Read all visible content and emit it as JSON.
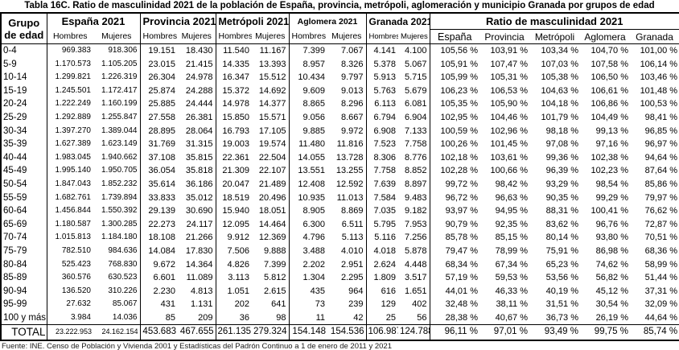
{
  "title": "Tabla 16C. Ratio de masculinidad 2021 de la población de España, provincia, metrópoli, aglomeración y municipio Granada por grupos de edad",
  "footer": "Fuente: INE. Censo de Población y Vivienda 2001 y Estadísticas del Padrón Continuo a 1 de enero de 2011 y 2021",
  "table": {
    "row_header": "Grupo de edad",
    "groups": [
      {
        "label": "España 2021",
        "sub": [
          "Hombres",
          "Mujeres"
        ]
      },
      {
        "label": "Provincia 2021",
        "sub": [
          "Hombres",
          "Mujeres"
        ]
      },
      {
        "label": "Metrópoli 2021",
        "sub": [
          "Hombres",
          "Mujeres"
        ]
      },
      {
        "label": "Aglomera 2021",
        "sub": [
          "Hombres",
          "Mujeres"
        ]
      },
      {
        "label": "Granada 2021",
        "sub": [
          "Hombres",
          "Mujeres"
        ]
      }
    ],
    "ratio_header": "Ratio de masculinidad 2021",
    "ratio_columns": [
      "España",
      "Provincia",
      "Metrópoli",
      "Aglomera",
      "Granada"
    ],
    "rows": [
      {
        "edad": "0-4",
        "values": [
          "969.383",
          "918.306",
          "19.151",
          "18.430",
          "11.540",
          "11.167",
          "7.399",
          "7.067",
          "4.141",
          "4.100"
        ],
        "ratios": [
          "105,56 %",
          "103,91 %",
          "103,34 %",
          "104,70 %",
          "101,00 %"
        ]
      },
      {
        "edad": "5-9",
        "values": [
          "1.170.573",
          "1.105.205",
          "23.015",
          "21.415",
          "14.335",
          "13.393",
          "8.957",
          "8.326",
          "5.378",
          "5.067"
        ],
        "ratios": [
          "105,91 %",
          "107,47 %",
          "107,03 %",
          "107,58 %",
          "106,14 %"
        ]
      },
      {
        "edad": "10-14",
        "values": [
          "1.299.821",
          "1.226.319",
          "26.304",
          "24.978",
          "16.347",
          "15.512",
          "10.434",
          "9.797",
          "5.913",
          "5.715"
        ],
        "ratios": [
          "105,99 %",
          "105,31 %",
          "105,38 %",
          "106,50 %",
          "103,46 %"
        ]
      },
      {
        "edad": "15-19",
        "values": [
          "1.245.501",
          "1.172.417",
          "25.874",
          "24.288",
          "15.372",
          "14.692",
          "9.609",
          "9.013",
          "5.763",
          "5.679"
        ],
        "ratios": [
          "106,23 %",
          "106,53 %",
          "104,63 %",
          "106,61 %",
          "101,48 %"
        ]
      },
      {
        "edad": "20-24",
        "values": [
          "1.222.249",
          "1.160.199",
          "25.885",
          "24.444",
          "14.978",
          "14.377",
          "8.865",
          "8.296",
          "6.113",
          "6.081"
        ],
        "ratios": [
          "105,35 %",
          "105,90 %",
          "104,18 %",
          "106,86 %",
          "100,53 %"
        ]
      },
      {
        "edad": "25-29",
        "values": [
          "1.292.889",
          "1.255.847",
          "27.558",
          "26.381",
          "15.850",
          "15.571",
          "9.056",
          "8.667",
          "6.794",
          "6.904"
        ],
        "ratios": [
          "102,95 %",
          "104,46 %",
          "101,79 %",
          "104,49 %",
          "98,41 %"
        ]
      },
      {
        "edad": "30-34",
        "values": [
          "1.397.270",
          "1.389.044",
          "28.895",
          "28.064",
          "16.793",
          "17.105",
          "9.885",
          "9.972",
          "6.908",
          "7.133"
        ],
        "ratios": [
          "100,59 %",
          "102,96 %",
          "98,18 %",
          "99,13 %",
          "96,85 %"
        ]
      },
      {
        "edad": "35-39",
        "values": [
          "1.627.389",
          "1.623.149",
          "31.769",
          "31.315",
          "19.003",
          "19.574",
          "11.480",
          "11.816",
          "7.523",
          "7.758"
        ],
        "ratios": [
          "100,26 %",
          "101,45 %",
          "97,08 %",
          "97,16 %",
          "96,97 %"
        ]
      },
      {
        "edad": "40-44",
        "values": [
          "1.983.045",
          "1.940.662",
          "37.108",
          "35.815",
          "22.361",
          "22.504",
          "14.055",
          "13.728",
          "8.306",
          "8.776"
        ],
        "ratios": [
          "102,18 %",
          "103,61 %",
          "99,36 %",
          "102,38 %",
          "94,64 %"
        ]
      },
      {
        "edad": "45-49",
        "values": [
          "1.995.140",
          "1.950.705",
          "36.054",
          "35.818",
          "21.309",
          "22.107",
          "13.551",
          "13.255",
          "7.758",
          "8.852"
        ],
        "ratios": [
          "102,28 %",
          "100,66 %",
          "96,39 %",
          "102,23 %",
          "87,64 %"
        ]
      },
      {
        "edad": "50-54",
        "values": [
          "1.847.043",
          "1.852.232",
          "35.614",
          "36.186",
          "20.047",
          "21.489",
          "12.408",
          "12.592",
          "7.639",
          "8.897"
        ],
        "ratios": [
          "99,72 %",
          "98,42 %",
          "93,29 %",
          "98,54 %",
          "85,86 %"
        ]
      },
      {
        "edad": "55-59",
        "values": [
          "1.682.761",
          "1.739.894",
          "33.833",
          "35.012",
          "18.519",
          "20.496",
          "10.935",
          "11.013",
          "7.584",
          "9.483"
        ],
        "ratios": [
          "96,72 %",
          "96,63 %",
          "90,35 %",
          "99,29 %",
          "79,97 %"
        ]
      },
      {
        "edad": "60-64",
        "values": [
          "1.456.844",
          "1.550.392",
          "29.139",
          "30.690",
          "15.940",
          "18.051",
          "8.905",
          "8.869",
          "7.035",
          "9.182"
        ],
        "ratios": [
          "93,97 %",
          "94,95 %",
          "88,31 %",
          "100,41 %",
          "76,62 %"
        ]
      },
      {
        "edad": "65-69",
        "values": [
          "1.180.587",
          "1.300.285",
          "22.273",
          "24.117",
          "12.095",
          "14.464",
          "6.300",
          "6.511",
          "5.795",
          "7.953"
        ],
        "ratios": [
          "90,79 %",
          "92,35 %",
          "83,62 %",
          "96,76 %",
          "72,87 %"
        ]
      },
      {
        "edad": "70-74",
        "values": [
          "1.015.813",
          "1.184.180",
          "18.108",
          "21.266",
          "9.912",
          "12.369",
          "4.796",
          "5.113",
          "5.116",
          "7.256"
        ],
        "ratios": [
          "85,78 %",
          "85,15 %",
          "80,14 %",
          "93,80 %",
          "70,51 %"
        ]
      },
      {
        "edad": "75-79",
        "values": [
          "782.510",
          "984.636",
          "14.084",
          "17.830",
          "7.506",
          "9.888",
          "3.488",
          "4.010",
          "4.018",
          "5.878"
        ],
        "ratios": [
          "79,47 %",
          "78,99 %",
          "75,91 %",
          "86,98 %",
          "68,36 %"
        ]
      },
      {
        "edad": "80-84",
        "values": [
          "525.423",
          "768.830",
          "9.672",
          "14.364",
          "4.826",
          "7.399",
          "2.202",
          "2.951",
          "2.624",
          "4.448"
        ],
        "ratios": [
          "68,34 %",
          "67,34 %",
          "65,23 %",
          "74,62 %",
          "58,99 %"
        ]
      },
      {
        "edad": "85-89",
        "values": [
          "360.576",
          "630.523",
          "6.601",
          "11.089",
          "3.113",
          "5.812",
          "1.304",
          "2.295",
          "1.809",
          "3.517"
        ],
        "ratios": [
          "57,19 %",
          "59,53 %",
          "53,56 %",
          "56,82 %",
          "51,44 %"
        ]
      },
      {
        "edad": "90-94",
        "values": [
          "136.520",
          "310.226",
          "2.230",
          "4.813",
          "1.051",
          "2.615",
          "435",
          "964",
          "616",
          "1.651"
        ],
        "ratios": [
          "44,01 %",
          "46,33 %",
          "40,19 %",
          "45,12 %",
          "37,31 %"
        ]
      },
      {
        "edad": "95-99",
        "values": [
          "27.632",
          "85.067",
          "431",
          "1.131",
          "202",
          "641",
          "73",
          "239",
          "129",
          "402"
        ],
        "ratios": [
          "32,48 %",
          "38,11 %",
          "31,51 %",
          "30,54 %",
          "32,09 %"
        ]
      },
      {
        "edad": "100 y más",
        "values": [
          "3.984",
          "14.036",
          "85",
          "209",
          "36",
          "98",
          "11",
          "42",
          "25",
          "56"
        ],
        "ratios": [
          "28,38 %",
          "40,67 %",
          "36,73 %",
          "26,19 %",
          "44,64 %"
        ]
      }
    ],
    "total": {
      "label": "TOTAL",
      "values": [
        "23.222.953",
        "24.162.154",
        "453.683",
        "467.655",
        "261.135",
        "279.324",
        "154.148",
        "154.536",
        "106.987",
        "124.788"
      ],
      "ratios": [
        "96,11 %",
        "97,01 %",
        "93,49 %",
        "99,75 %",
        "85,74 %"
      ]
    }
  }
}
